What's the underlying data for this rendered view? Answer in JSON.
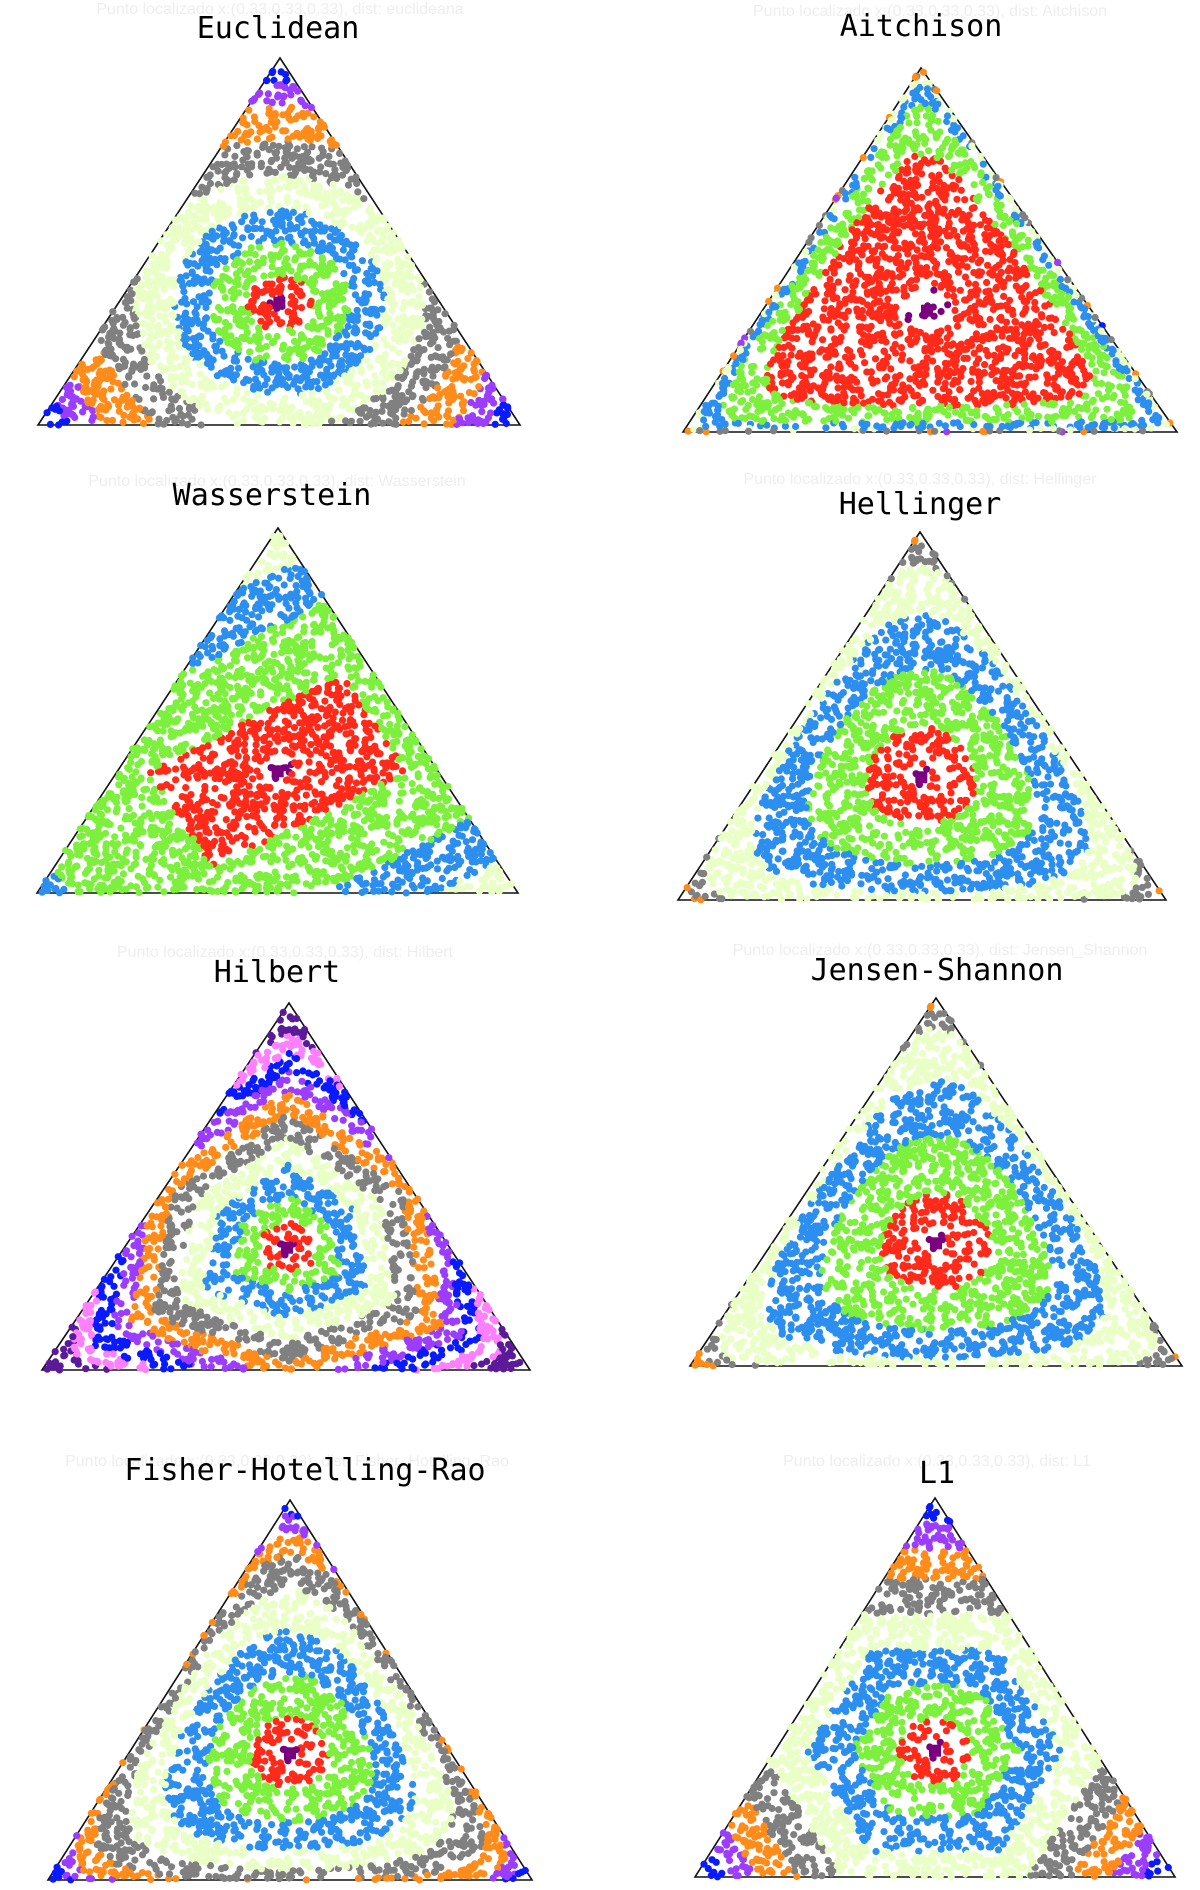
{
  "chart_data": [
    {
      "type": "scatter",
      "title": "Euclidean",
      "faint_caption": "Punto localizado x:(0.33,0.33,0.33), dist: euclideana",
      "center": [
        0.33,
        0.33,
        0.33
      ],
      "distance": "euclidean",
      "colors": [
        "#7b0080",
        "#ff2a1a",
        "#7cf03c",
        "#2c8ff0",
        "#eaffc6",
        "#808080",
        "#ff8c1a",
        "#9b3cff",
        "#0a1aff"
      ],
      "ring_fractions": [
        0.035,
        0.115,
        0.25,
        0.38,
        0.52,
        0.66,
        0.8,
        0.9,
        1.0
      ]
    },
    {
      "type": "scatter",
      "title": "Aitchison",
      "faint_caption": "Punto localizado x:(0.33,0.33,0.33), dist: Aitchison",
      "center": [
        0.33,
        0.33,
        0.33
      ],
      "distance": "aitchison",
      "colors": [
        "#7b0080",
        "#ff2a1a",
        "#7cf03c",
        "#2c8ff0",
        "#eaffc6",
        "#808080",
        "#ff8c1a",
        "#9b3cff",
        "#0a1aff",
        "#ff80ff",
        "#00e5ff"
      ],
      "ring_fractions": [
        0.04,
        0.27,
        0.42,
        0.55,
        0.66,
        0.75,
        0.83,
        0.89,
        0.94,
        0.975,
        1.0
      ]
    },
    {
      "type": "scatter",
      "title": "Wasserstein",
      "faint_caption": "Punto localizado x:(0.33,0.33,0.33), dist: Wasserstein",
      "center": [
        0.33,
        0.33,
        0.33
      ],
      "distance": "wasserstein",
      "colors": [
        "#7b0080",
        "#ff2a1a",
        "#7cf03c",
        "#2c8ff0",
        "#eaffc6",
        "#808080",
        "#ff8c1a",
        "#9b3cff",
        "#0a1aff"
      ],
      "ring_fractions": [
        0.03,
        0.2,
        0.45,
        0.62,
        0.76,
        0.86,
        0.93,
        0.97,
        1.0
      ]
    },
    {
      "type": "scatter",
      "title": "Hellinger",
      "faint_caption": "Punto localizado x:(0.33,0.33,0.33), dist: Hellinger",
      "center": [
        0.33,
        0.33,
        0.33
      ],
      "distance": "hellinger",
      "colors": [
        "#7b0080",
        "#ff2a1a",
        "#7cf03c",
        "#2c8ff0",
        "#eaffc6",
        "#808080",
        "#ff8c1a"
      ],
      "ring_fractions": [
        0.035,
        0.17,
        0.36,
        0.56,
        0.79,
        0.92,
        1.0
      ]
    },
    {
      "type": "scatter",
      "title": "Hilbert",
      "faint_caption": "Punto localizado x:(0.33,0.33,0.33), dist: Hilbert",
      "center": [
        0.33,
        0.33,
        0.33
      ],
      "distance": "hilbert",
      "colors": [
        "#7b0080",
        "#ff2a1a",
        "#7cf03c",
        "#2c8ff0",
        "#eaffc6",
        "#808080",
        "#ff8c1a",
        "#9b3cff",
        "#0a1aff",
        "#ff80ff",
        "#5b1a9a"
      ],
      "ring_fractions": [
        0.04,
        0.12,
        0.22,
        0.34,
        0.45,
        0.55,
        0.64,
        0.72,
        0.8,
        0.88,
        1.0
      ]
    },
    {
      "type": "scatter",
      "title": "Jensen-Shannon",
      "faint_caption": "Punto localizado x:(0.33,0.33,0.33), dist: Jensen_Shannon",
      "center": [
        0.33,
        0.33,
        0.33
      ],
      "distance": "jensen_shannon",
      "colors": [
        "#7b0080",
        "#ff2a1a",
        "#7cf03c",
        "#2c8ff0",
        "#eaffc6",
        "#808080",
        "#ff8c1a"
      ],
      "ring_fractions": [
        0.035,
        0.17,
        0.36,
        0.56,
        0.8,
        0.93,
        1.0
      ]
    },
    {
      "type": "scatter",
      "title": "Fisher-Hotelling-Rao",
      "faint_caption": "Punto localizado x:(0.33,0.33,0.33), dist: Fisher_Hotelling_Rao",
      "center": [
        0.33,
        0.33,
        0.33
      ],
      "distance": "fisher_hotelling_rao",
      "colors": [
        "#7b0080",
        "#ff2a1a",
        "#7cf03c",
        "#2c8ff0",
        "#eaffc6",
        "#808080",
        "#ff8c1a",
        "#9b3cff",
        "#0a1aff"
      ],
      "ring_fractions": [
        0.035,
        0.12,
        0.26,
        0.4,
        0.54,
        0.68,
        0.8,
        0.9,
        1.0
      ]
    },
    {
      "type": "scatter",
      "title": "L1",
      "faint_caption": "Punto localizado x:(0.33,0.33,0.33), dist: L1",
      "center": [
        0.33,
        0.33,
        0.33
      ],
      "distance": "l1",
      "colors": [
        "#7b0080",
        "#ff2a1a",
        "#7cf03c",
        "#2c8ff0",
        "#eaffc6",
        "#808080",
        "#ff8c1a",
        "#9b3cff",
        "#0a1aff"
      ],
      "ring_fractions": [
        0.035,
        0.12,
        0.26,
        0.4,
        0.54,
        0.68,
        0.8,
        0.9,
        1.0
      ]
    }
  ]
}
